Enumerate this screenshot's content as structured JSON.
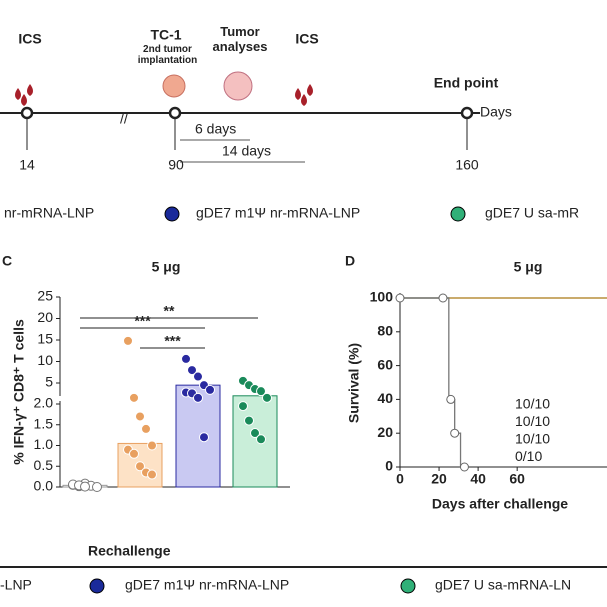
{
  "timeline": {
    "events": [
      {
        "label": "ICS"
      },
      {
        "label": "TC-1",
        "sublabel": "2nd tumor implantation"
      },
      {
        "label": "Tumor analyses"
      },
      {
        "label": "ICS"
      },
      {
        "label": "End point"
      }
    ],
    "axis_label": "Days",
    "ticks": [
      "14",
      "90",
      "160"
    ],
    "spans": [
      "6 days",
      "14 days"
    ]
  },
  "legend_top": [
    "nr-mRNA-LNP",
    "gDE7 m1Ψ nr-mRNA-LNP",
    "gDE7 U sa-mR"
  ],
  "chart_data": [
    {
      "type": "bar",
      "panel": "C",
      "title": "5 μg",
      "y_label": "% IFN-γ⁺ CD8⁺ T cells",
      "categories": [
        null,
        null,
        null,
        null
      ],
      "values": [
        0.04,
        1.05,
        4.5,
        2.4
      ],
      "colors": [
        "#ffffff",
        "#fde2c6",
        "#c9c9f2",
        "#c9eed9"
      ],
      "point_colors": [
        "#999999",
        "#e8a060",
        "#2a2aa0",
        "#1a8a5a"
      ],
      "points": [
        [
          0.05,
          0.02,
          0.08,
          0.03,
          0.0,
          0.06,
          0.04,
          0.01
        ],
        [
          14.8,
          2.3,
          1.7,
          1.4,
          1.0,
          0.9,
          0.8,
          0.5,
          0.35,
          0.3
        ],
        [
          10.6,
          8,
          6.5,
          4.5,
          3.4,
          2.8,
          2.6,
          2.3,
          1.2
        ],
        [
          5.5,
          4.5,
          3.6,
          3.1,
          2.3,
          1.95,
          1.6,
          1.3,
          1.15
        ]
      ],
      "ylim": [
        0,
        25
      ],
      "ybreak": [
        2,
        2.5
      ],
      "yticks": [
        {
          "value": 0,
          "label": "0.0"
        },
        0.5,
        {
          "value": 1,
          "label": "1.0"
        },
        1.5,
        {
          "value": 2,
          "label": "2.0"
        },
        5,
        10,
        15,
        20,
        25
      ],
      "significance": [
        "**",
        "***",
        "***"
      ]
    },
    {
      "type": "line",
      "panel": "D",
      "title": "5 μg",
      "x_label": "Days after challenge",
      "y_label": "Survival (%)",
      "xlim": [
        0,
        106
      ],
      "ylim": [
        0,
        100
      ],
      "xticks": [
        0,
        20,
        40,
        60
      ],
      "yticks": [
        0,
        20,
        40,
        60,
        80,
        100
      ],
      "series": [
        {
          "name": "10/10",
          "color": "#1a9a60",
          "x": [
            0,
            106
          ],
          "values": [
            100,
            100
          ]
        },
        {
          "name": "10/10",
          "color": "#4a4ab8",
          "x": [
            0,
            106
          ],
          "values": [
            100,
            100
          ]
        },
        {
          "name": "10/10",
          "color": "#e0a030",
          "x": [
            0,
            106
          ],
          "values": [
            100,
            100
          ]
        },
        {
          "name": "0/10",
          "color": "#222222",
          "x": [
            0,
            25,
            25,
            28,
            28,
            31,
            31,
            33
          ],
          "values": [
            100,
            100,
            40,
            40,
            20,
            20,
            0,
            0
          ],
          "marker_x": [
            0,
            22,
            26,
            28,
            33
          ],
          "marker_values": [
            100,
            100,
            40,
            20,
            0
          ]
        }
      ]
    }
  ],
  "section_title": "Rechallenge",
  "legend_bottom": [
    "-LNP",
    "gDE7 m1Ψ nr-mRNA-LNP",
    "gDE7 U sa-mRNA-LN"
  ]
}
